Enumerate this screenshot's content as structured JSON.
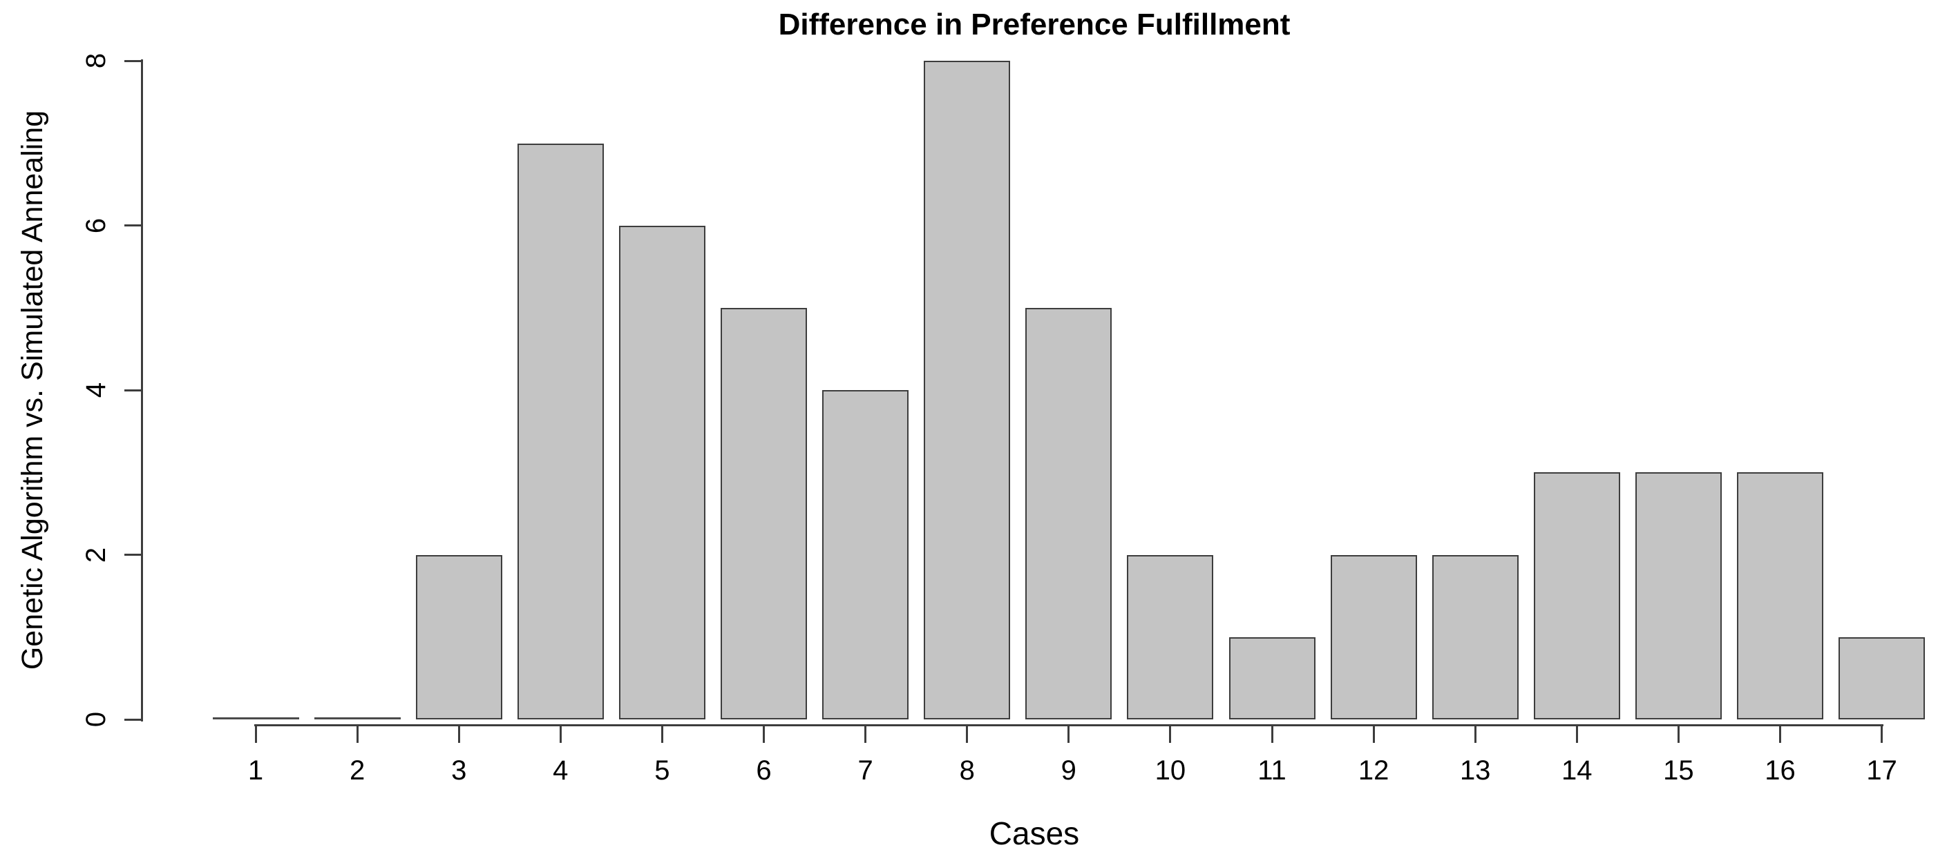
{
  "chart_data": {
    "type": "bar",
    "title": "Difference in Preference Fulfillment",
    "xlabel": "Cases",
    "ylabel": "Genetic Algorithm vs. Simulated Annealing",
    "categories": [
      "1",
      "2",
      "3",
      "4",
      "5",
      "6",
      "7",
      "8",
      "9",
      "10",
      "11",
      "12",
      "13",
      "14",
      "15",
      "16",
      "17"
    ],
    "values": [
      0,
      0,
      2,
      7,
      6,
      5,
      4,
      8,
      5,
      2,
      1,
      2,
      2,
      3,
      3,
      3,
      1
    ],
    "ylim": [
      0,
      8
    ],
    "yticks": [
      0,
      2,
      4,
      6,
      8
    ],
    "grid": false,
    "legend": null,
    "colors": {
      "bar_fill": "#c4c4c4",
      "bar_border": "#3d3d3d",
      "axis": "#3d3d3d",
      "text": "#000000",
      "background": "#ffffff"
    }
  }
}
